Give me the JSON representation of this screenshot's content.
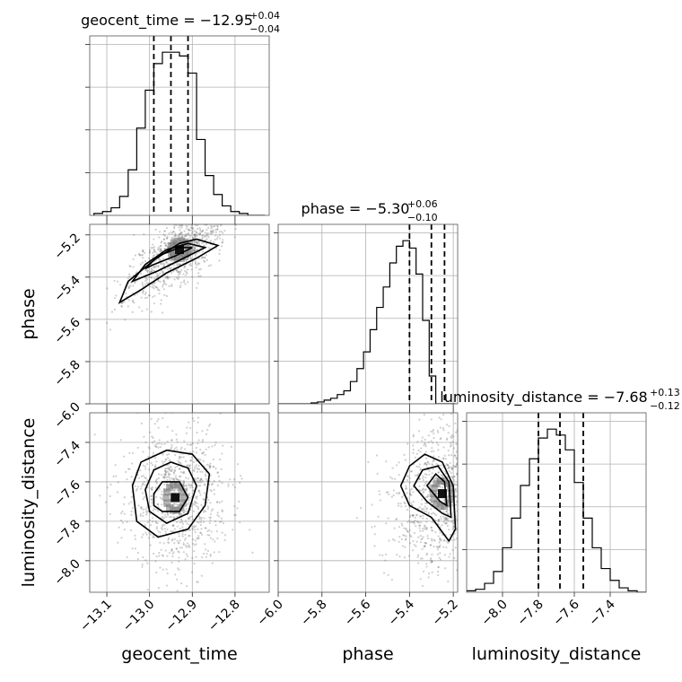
{
  "chart_data": {
    "type": "corner",
    "parameters": [
      {
        "name": "geocent_time",
        "label": "geocent_time",
        "range": [
          -13.14,
          -12.72
        ],
        "ticks": [
          -13.1,
          -13.0,
          -12.9,
          -12.8
        ],
        "tick_labels": [
          "−13.1",
          "−13.0",
          "−12.9",
          "−12.8"
        ],
        "median": -12.95,
        "lower": -12.99,
        "upper": -12.91,
        "title_main": "geocent_time = −12.95",
        "title_sup": "+0.04",
        "title_sub": "−0.04",
        "hist_bin_width": 0.02,
        "hist_bin_start": -13.13,
        "hist_counts": [
          2,
          4,
          8,
          20,
          48,
          92,
          132,
          160,
          172,
          172,
          168,
          150,
          80,
          42,
          22,
          10,
          4,
          2,
          0,
          0
        ]
      },
      {
        "name": "phase",
        "label": "phase",
        "range": [
          -6.0,
          -5.18
        ],
        "ticks": [
          -6.0,
          -5.8,
          -5.6,
          -5.4,
          -5.2
        ],
        "tick_labels": [
          "−6.0",
          "−5.8",
          "−5.6",
          "−5.4",
          "−5.2"
        ],
        "median": -5.3,
        "lower": -5.4,
        "upper": -5.24,
        "title_main": "phase = −5.30",
        "title_sup": "+0.06",
        "title_sub": "−0.10",
        "hist_bin_width": 0.03,
        "hist_bin_start": -6.0,
        "hist_counts": [
          0,
          0,
          0,
          0,
          0,
          1,
          2,
          4,
          6,
          10,
          14,
          24,
          38,
          56,
          80,
          104,
          126,
          152,
          170,
          176,
          168,
          140,
          90,
          30,
          0,
          0,
          0
        ]
      },
      {
        "name": "luminosity_distance",
        "label": "luminosity_distance",
        "range": [
          -8.2,
          -7.2
        ],
        "ticks": [
          -8.0,
          -7.8,
          -7.6,
          -7.4
        ],
        "tick_labels": [
          "−8.0",
          "−7.8",
          "−7.6",
          "−7.4"
        ],
        "median": -7.68,
        "lower": -7.8,
        "upper": -7.55,
        "title_main": "luminosity_distance = −7.68",
        "title_sup": "+0.13",
        "title_sub": "−0.12",
        "hist_bin_width": 0.05,
        "hist_bin_start": -8.2,
        "hist_counts": [
          1,
          2,
          6,
          14,
          30,
          50,
          72,
          90,
          104,
          110,
          106,
          96,
          74,
          50,
          30,
          16,
          8,
          3,
          1,
          0
        ]
      }
    ],
    "y_ranges": {
      "phase": [
        -6.0,
        -5.15
      ],
      "luminosity_distance": [
        -8.16,
        -7.25
      ]
    },
    "y_ticks": {
      "phase": [
        -6.0,
        -5.8,
        -5.6,
        -5.4,
        -5.2
      ],
      "luminosity_distance": [
        -8.0,
        -7.8,
        -7.6,
        -7.4
      ]
    },
    "y_tick_labels": {
      "phase": [
        "−6.0",
        "−5.8",
        "−5.6",
        "−5.4",
        "−5.2"
      ],
      "luminosity_distance": [
        "−8.0",
        "−7.8",
        "−7.6",
        "−7.4"
      ]
    },
    "grid": true,
    "contours": {
      "geocent_time_vs_phase": [
        [
          [
            -13.07,
            -5.52
          ],
          [
            -13.05,
            -5.42
          ],
          [
            -12.99,
            -5.32
          ],
          [
            -12.93,
            -5.24
          ],
          [
            -12.89,
            -5.22
          ],
          [
            -12.84,
            -5.25
          ],
          [
            -12.89,
            -5.31
          ],
          [
            -12.96,
            -5.38
          ],
          [
            -13.02,
            -5.46
          ],
          [
            -13.07,
            -5.52
          ]
        ],
        [
          [
            -13.04,
            -5.42
          ],
          [
            -13.01,
            -5.34
          ],
          [
            -12.96,
            -5.27
          ],
          [
            -12.91,
            -5.24
          ],
          [
            -12.87,
            -5.26
          ],
          [
            -12.92,
            -5.31
          ],
          [
            -12.98,
            -5.37
          ],
          [
            -13.04,
            -5.42
          ]
        ],
        [
          [
            -13.01,
            -5.36
          ],
          [
            -12.98,
            -5.3
          ],
          [
            -12.93,
            -5.26
          ],
          [
            -12.9,
            -5.26
          ],
          [
            -12.94,
            -5.3
          ],
          [
            -12.99,
            -5.34
          ],
          [
            -13.01,
            -5.36
          ]
        ]
      ],
      "geocent_time_vs_luminosity_distance": [
        [
          [
            -13.04,
            -7.62
          ],
          [
            -13.02,
            -7.5
          ],
          [
            -12.96,
            -7.44
          ],
          [
            -12.9,
            -7.46
          ],
          [
            -12.86,
            -7.56
          ],
          [
            -12.87,
            -7.72
          ],
          [
            -12.91,
            -7.84
          ],
          [
            -12.98,
            -7.88
          ],
          [
            -13.03,
            -7.8
          ],
          [
            -13.04,
            -7.62
          ]
        ],
        [
          [
            -13.01,
            -7.64
          ],
          [
            -12.99,
            -7.54
          ],
          [
            -12.95,
            -7.5
          ],
          [
            -12.91,
            -7.53
          ],
          [
            -12.89,
            -7.62
          ],
          [
            -12.91,
            -7.76
          ],
          [
            -12.96,
            -7.81
          ],
          [
            -13.0,
            -7.75
          ],
          [
            -13.01,
            -7.64
          ]
        ],
        [
          [
            -12.99,
            -7.66
          ],
          [
            -12.97,
            -7.6
          ],
          [
            -12.93,
            -7.6
          ],
          [
            -12.91,
            -7.68
          ],
          [
            -12.93,
            -7.75
          ],
          [
            -12.97,
            -7.75
          ],
          [
            -12.99,
            -7.72
          ],
          [
            -12.99,
            -7.66
          ]
        ]
      ],
      "phase_vs_luminosity_distance": [
        [
          [
            -5.44,
            -7.62
          ],
          [
            -5.4,
            -7.52
          ],
          [
            -5.33,
            -7.46
          ],
          [
            -5.25,
            -7.5
          ],
          [
            -5.2,
            -7.62
          ],
          [
            -5.19,
            -7.84
          ],
          [
            -5.22,
            -7.9
          ],
          [
            -5.3,
            -7.78
          ],
          [
            -5.4,
            -7.72
          ],
          [
            -5.44,
            -7.62
          ]
        ],
        [
          [
            -5.38,
            -7.62
          ],
          [
            -5.34,
            -7.54
          ],
          [
            -5.27,
            -7.52
          ],
          [
            -5.22,
            -7.6
          ],
          [
            -5.21,
            -7.78
          ],
          [
            -5.25,
            -7.76
          ],
          [
            -5.32,
            -7.7
          ],
          [
            -5.38,
            -7.62
          ]
        ],
        [
          [
            -5.32,
            -7.62
          ],
          [
            -5.28,
            -7.56
          ],
          [
            -5.24,
            -7.6
          ],
          [
            -5.23,
            -7.72
          ],
          [
            -5.26,
            -7.7
          ],
          [
            -5.32,
            -7.62
          ]
        ]
      ]
    },
    "density_centers": {
      "geocent_time_vs_phase": [
        -12.93,
        -5.27
      ],
      "geocent_time_vs_luminosity_distance": [
        -12.94,
        -7.68
      ],
      "phase_vs_luminosity_distance": [
        -5.25,
        -7.66
      ]
    }
  }
}
